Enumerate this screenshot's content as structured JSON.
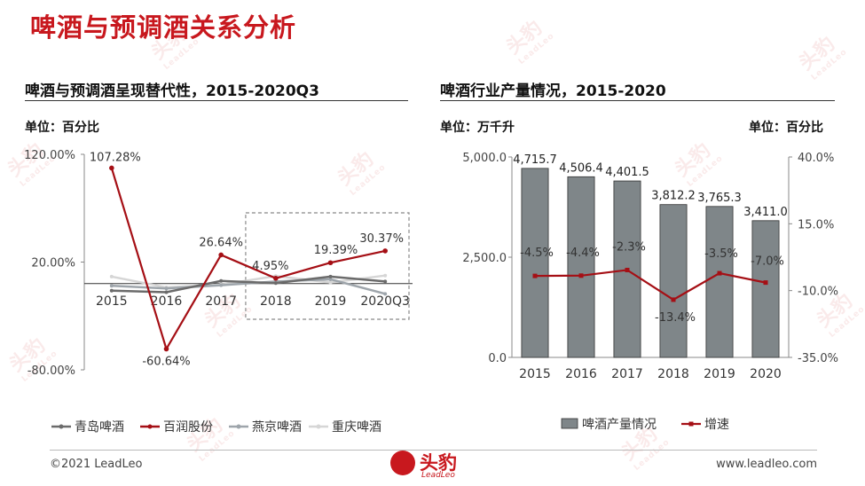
{
  "page": {
    "title": "啤酒与预调酒关系分析",
    "footer_left": "©2021 LeadLeo",
    "footer_right": "www.leadleo.com",
    "logo_text": "头豹",
    "logo_sub": "LeadLeo",
    "watermark_text": "头豹",
    "watermark_sub": "LeadLeo"
  },
  "colors": {
    "title_red": "#c8181e",
    "line_red": "#a50f15",
    "bar_gray": "#7f8689",
    "qingdao": "#6b6b6b",
    "yanjing": "#9ea5ab",
    "chongqing": "#d6d6d6"
  },
  "chart_data": [
    {
      "type": "line",
      "title": "啤酒与预调酒呈现替代性，2015-2020Q3",
      "unit": "单位：百分比",
      "categories": [
        "2015",
        "2016",
        "2017",
        "2018",
        "2019",
        "2020Q3"
      ],
      "ytick_labels": [
        "120.00%",
        "20.00%",
        "-80.00%"
      ],
      "ylim": [
        -80,
        120
      ],
      "series": [
        {
          "name": "青岛啤酒",
          "values": [
            -6.5,
            -8.0,
            2.5,
            0.5,
            6.5,
            2.0
          ],
          "labels": []
        },
        {
          "name": "百润股份",
          "values": [
            107.28,
            -60.64,
            26.64,
            4.95,
            19.39,
            30.37
          ],
          "labels": [
            "107.28%",
            "-60.64%",
            "26.64%",
            "4.95%",
            "19.39%",
            "30.37%"
          ]
        },
        {
          "name": "燕京啤酒",
          "values": [
            -2.0,
            -4.5,
            -1.5,
            2.0,
            4.0,
            -9.5
          ],
          "labels": []
        },
        {
          "name": "重庆啤酒",
          "values": [
            6.5,
            -3.5,
            -1.0,
            7.0,
            1.0,
            7.5
          ],
          "labels": []
        }
      ],
      "highlight_box": [
        "2018",
        "2020Q3"
      ],
      "legend": "bottom"
    },
    {
      "type": "bar+line",
      "title": "啤酒行业产量情况，2015-2020",
      "unit_left": "单位：万千升",
      "unit_right": "单位：百分比",
      "categories": [
        "2015",
        "2016",
        "2017",
        "2018",
        "2019",
        "2020"
      ],
      "bar_series": {
        "name": "啤酒产量情况",
        "values": [
          4715.7,
          4506.4,
          4401.5,
          3812.2,
          3765.3,
          3411.0
        ],
        "labels": [
          "4,715.7",
          "4,506.4",
          "4,401.5",
          "3,812.2",
          "3,765.3",
          "3,411.0"
        ]
      },
      "line_series": {
        "name": "增速",
        "values": [
          -4.5,
          -4.4,
          -2.3,
          -13.4,
          -3.5,
          -7.0
        ],
        "labels": [
          "-4.5%",
          "-4.4%",
          "-2.3%",
          "-13.4%",
          "-3.5%",
          "-7.0%"
        ]
      },
      "ylim_left": [
        0,
        5000
      ],
      "ytick_left": [
        "0.0",
        "2,500.0",
        "5,000.0"
      ],
      "ylim_right": [
        -35,
        40
      ],
      "ytick_right": [
        "-35.0%",
        "-10.0%",
        "15.0%",
        "40.0%"
      ],
      "legend": "bottom"
    }
  ]
}
